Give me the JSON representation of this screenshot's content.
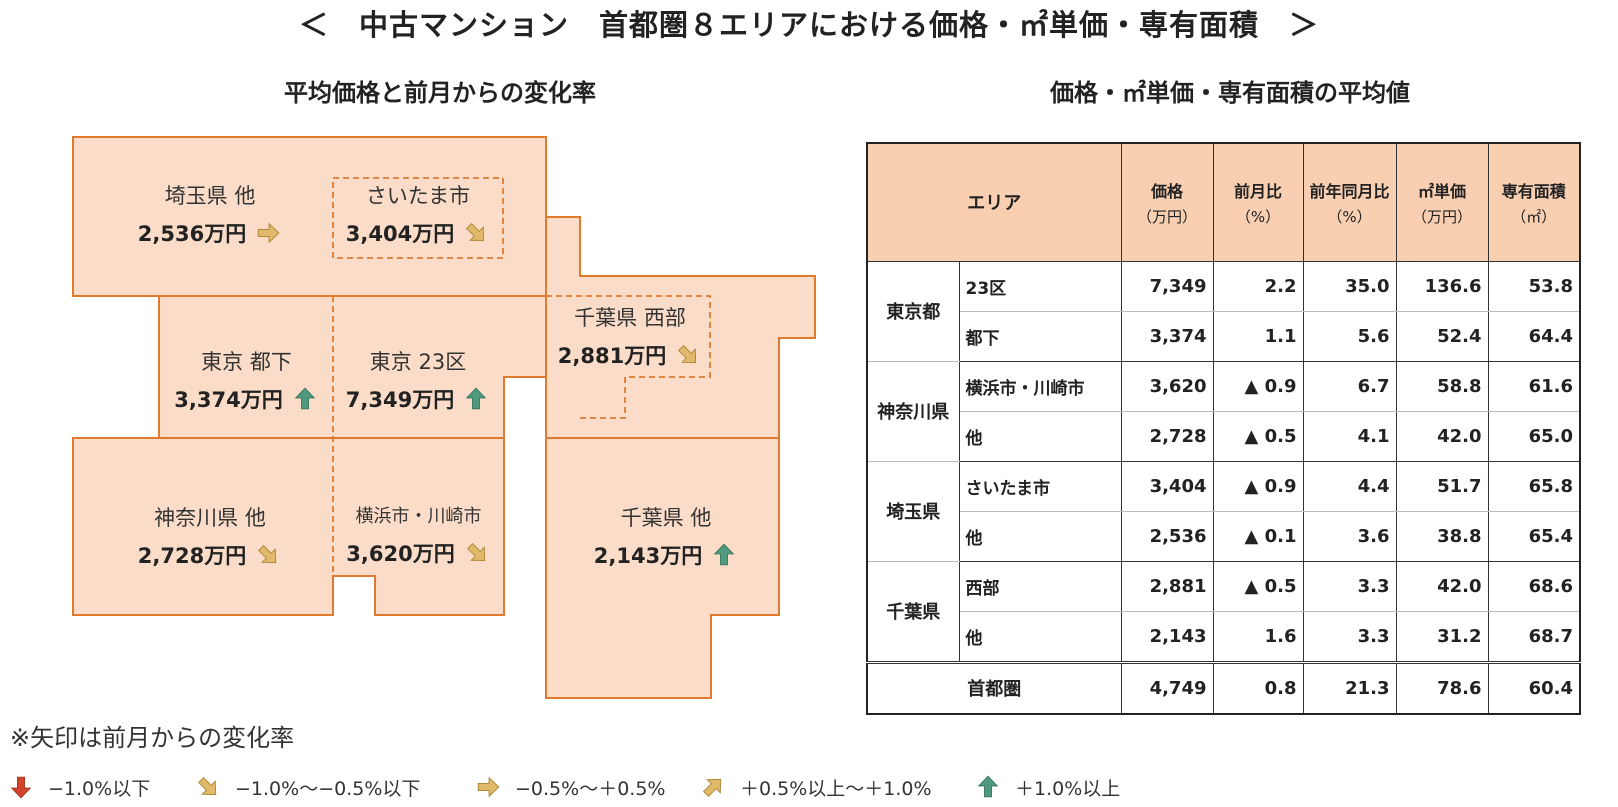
{
  "title": "＜　中古マンション　首都圏８エリアにおける価格・㎡単価・専有面積　＞",
  "map_section": {
    "title": "平均価格と前月からの変化率",
    "areas": [
      {
        "name": "埼玉県 他",
        "price": "2,536万円",
        "arrow": "flat"
      },
      {
        "name": "さいたま市",
        "price": "3,404万円",
        "arrow": "slight-down"
      },
      {
        "name": "千葉県 西部",
        "price": "2,881万円",
        "arrow": "slight-down"
      },
      {
        "name": "東京 都下",
        "price": "3,374万円",
        "arrow": "up"
      },
      {
        "name": "東京 23区",
        "price": "7,349万円",
        "arrow": "up"
      },
      {
        "name": "神奈川県 他",
        "price": "2,728万円",
        "arrow": "slight-down"
      },
      {
        "name": "横浜市・川崎市",
        "price": "3,620万円",
        "arrow": "slight-down"
      },
      {
        "name": "千葉県 他",
        "price": "2,143万円",
        "arrow": "up"
      }
    ]
  },
  "table_section": {
    "title": "価格・㎡単価・専有面積の平均値",
    "headers": {
      "area": "エリア",
      "price": "価格",
      "price_unit": "（万円）",
      "mom": "前月比",
      "mom_unit": "（%）",
      "yoy": "前年同月比",
      "yoy_unit": "（%）",
      "unit_price": "㎡単価",
      "unit_price_unit": "（万円）",
      "floor_area": "専有面積",
      "floor_area_unit": "（㎡）"
    },
    "groups": [
      {
        "pref": "東京都",
        "rows": [
          {
            "area": "23区",
            "price": "7,349",
            "mom": "2.2",
            "yoy": "35.0",
            "unit_price": "136.6",
            "floor_area": "53.8"
          },
          {
            "area": "都下",
            "price": "3,374",
            "mom": "1.1",
            "yoy": "5.6",
            "unit_price": "52.4",
            "floor_area": "64.4"
          }
        ]
      },
      {
        "pref": "神奈川県",
        "rows": [
          {
            "area": "横浜市・川崎市",
            "price": "3,620",
            "mom": "▲ 0.9",
            "yoy": "6.7",
            "unit_price": "58.8",
            "floor_area": "61.6"
          },
          {
            "area": "他",
            "price": "2,728",
            "mom": "▲ 0.5",
            "yoy": "4.1",
            "unit_price": "42.0",
            "floor_area": "65.0"
          }
        ]
      },
      {
        "pref": "埼玉県",
        "rows": [
          {
            "area": "さいたま市",
            "price": "3,404",
            "mom": "▲ 0.9",
            "yoy": "4.4",
            "unit_price": "51.7",
            "floor_area": "65.8"
          },
          {
            "area": "他",
            "price": "2,536",
            "mom": "▲ 0.1",
            "yoy": "3.6",
            "unit_price": "38.8",
            "floor_area": "65.4"
          }
        ]
      },
      {
        "pref": "千葉県",
        "rows": [
          {
            "area": "西部",
            "price": "2,881",
            "mom": "▲ 0.5",
            "yoy": "3.3",
            "unit_price": "42.0",
            "floor_area": "68.6"
          },
          {
            "area": "他",
            "price": "2,143",
            "mom": "1.6",
            "yoy": "3.3",
            "unit_price": "31.2",
            "floor_area": "68.7"
          }
        ]
      }
    ],
    "total": {
      "area": "首都圏",
      "price": "4,749",
      "mom": "0.8",
      "yoy": "21.3",
      "unit_price": "78.6",
      "floor_area": "60.4"
    }
  },
  "footnote": "※矢印は前月からの変化率",
  "legend": [
    {
      "arrow": "down",
      "label": "−1.0%以下"
    },
    {
      "arrow": "slight-down",
      "label": "−1.0%〜−0.5%以下"
    },
    {
      "arrow": "flat",
      "label": "−0.5%〜＋0.5%"
    },
    {
      "arrow": "slight-up",
      "label": "＋0.5%以上〜＋1.0%"
    },
    {
      "arrow": "up",
      "label": "＋1.0%以上"
    }
  ],
  "colors": {
    "map_fill": "#fbdcc8",
    "map_border": "#e07a2e",
    "table_header": "#f9cfb2",
    "arrow_down": "#d2452b",
    "arrow_slight": "#e0b96a",
    "arrow_up": "#4f9a7e"
  }
}
